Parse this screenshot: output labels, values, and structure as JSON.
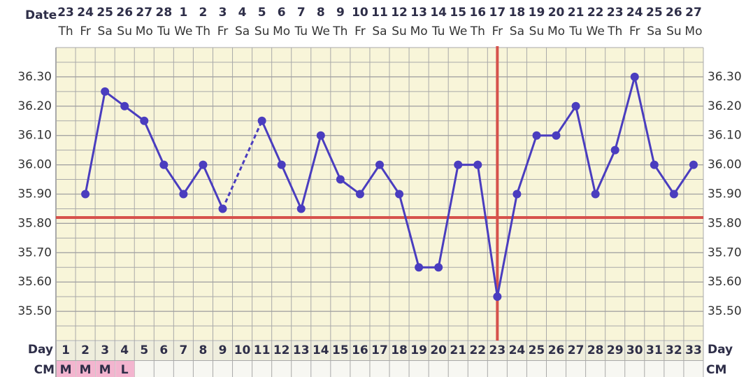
{
  "chart_data": {
    "type": "line",
    "date_label": "Date",
    "dates": [
      23,
      24,
      25,
      26,
      27,
      28,
      1,
      2,
      3,
      4,
      5,
      6,
      7,
      8,
      9,
      10,
      11,
      12,
      13,
      14,
      15,
      16,
      17,
      18,
      19,
      20,
      21,
      22,
      23,
      24,
      25,
      26,
      27
    ],
    "weekdays": [
      "Th",
      "Fr",
      "Sa",
      "Su",
      "Mo",
      "Tu",
      "We",
      "Th",
      "Fr",
      "Sa",
      "Su",
      "Mo",
      "Tu",
      "We",
      "Th",
      "Fr",
      "Sa",
      "Su",
      "Mo",
      "Tu",
      "We",
      "Th",
      "Fr",
      "Sa",
      "Su",
      "Mo",
      "Tu",
      "We",
      "Th",
      "Fr",
      "Sa",
      "Su",
      "Mo"
    ],
    "day_label": "Day",
    "categories": [
      1,
      2,
      3,
      4,
      5,
      6,
      7,
      8,
      9,
      10,
      11,
      12,
      13,
      14,
      15,
      16,
      17,
      18,
      19,
      20,
      21,
      22,
      23,
      24,
      25,
      26,
      27,
      28,
      29,
      30,
      31,
      32,
      33
    ],
    "values": [
      null,
      35.9,
      36.25,
      36.2,
      36.15,
      36.0,
      35.9,
      36.0,
      35.85,
      null,
      36.15,
      36.0,
      35.85,
      36.1,
      35.95,
      35.9,
      36.0,
      35.9,
      35.65,
      35.65,
      36.0,
      36.0,
      35.55,
      35.9,
      36.1,
      36.1,
      36.2,
      35.9,
      36.05,
      36.3,
      36.0,
      35.9,
      36.0
    ],
    "color": "#4a3dbf",
    "cm_label": "CM",
    "cm": [
      "M",
      "M",
      "M",
      "L",
      null,
      null,
      null,
      null,
      null,
      null,
      null,
      null,
      null,
      null,
      null,
      null,
      null,
      null,
      null,
      null,
      null,
      null,
      null,
      null,
      null,
      null,
      null,
      null,
      null,
      null,
      null,
      null,
      null
    ],
    "cm_color": "#f3b5cf",
    "coverline": 35.82,
    "ovulation_day": 23,
    "marker_color": "#d6524c",
    "ylim": [
      35.4,
      36.4
    ],
    "yticks": [
      {
        "value": 35.5,
        "label": "35.50"
      },
      {
        "value": 35.6,
        "label": "35.60"
      },
      {
        "value": 35.7,
        "label": "35.70"
      },
      {
        "value": 35.8,
        "label": "35.80"
      },
      {
        "value": 35.9,
        "label": "35.90"
      },
      {
        "value": 36.0,
        "label": "36.00"
      },
      {
        "value": 36.1,
        "label": "36.10"
      },
      {
        "value": 36.2,
        "label": "36.20"
      },
      {
        "value": 36.3,
        "label": "36.30"
      }
    ],
    "grid": true,
    "grid_step": 0.05
  }
}
